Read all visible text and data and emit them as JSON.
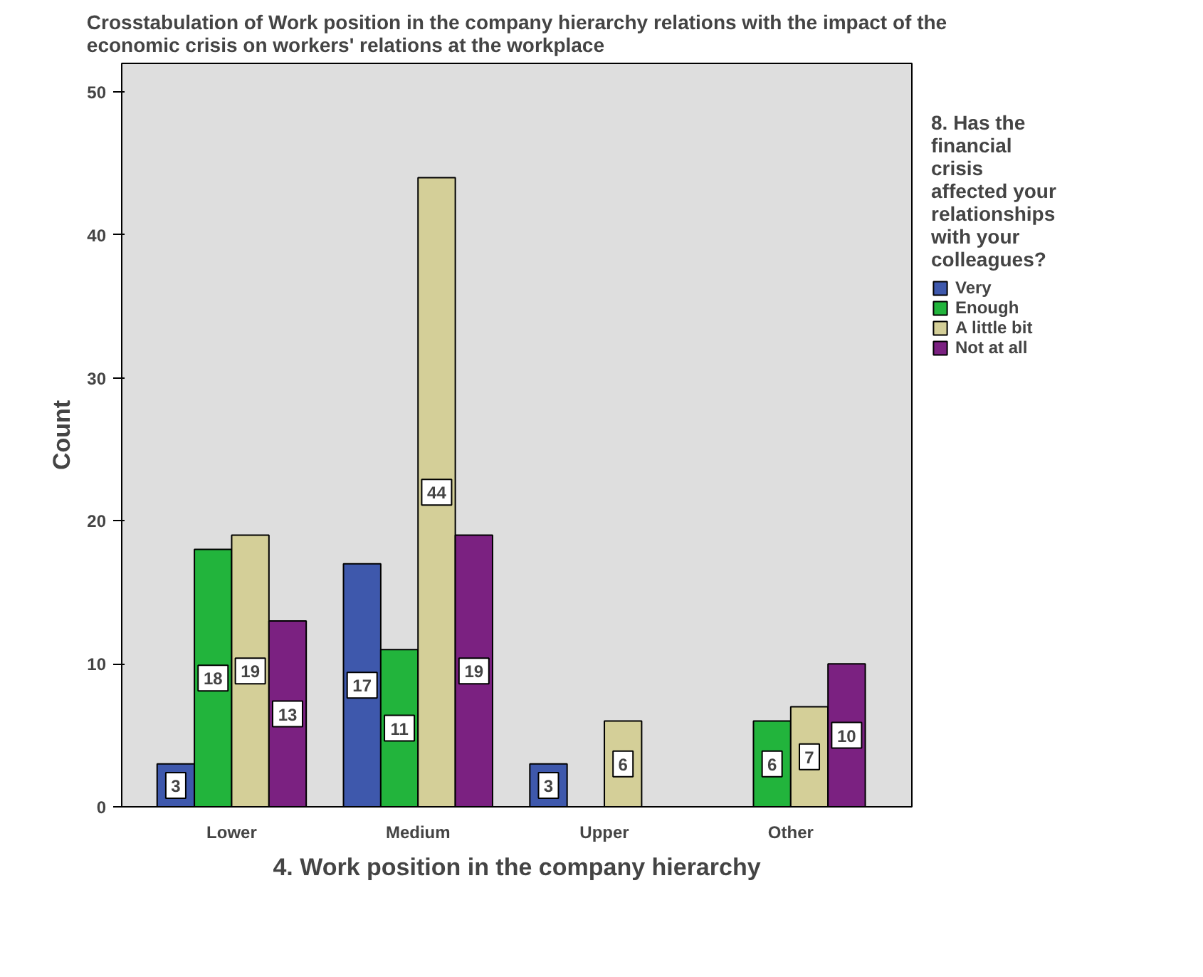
{
  "chart_data": {
    "type": "bar",
    "title": "Crosstabulation of Work position in the company hierarchy relations with the impact of the economic crisis on workers' relations at the workplace",
    "xlabel": "4. Work position in the company hierarchy",
    "ylabel": "Count",
    "legend_title": "8. Has the financial crisis affected your relationships with your colleagues?",
    "categories": [
      "Lower",
      "Medium",
      "Upper",
      "Other"
    ],
    "series": [
      {
        "name": "Very",
        "color": "#3e58ac",
        "values": [
          3,
          17,
          3,
          null
        ]
      },
      {
        "name": "Enough",
        "color": "#22b43c",
        "values": [
          18,
          11,
          null,
          6
        ]
      },
      {
        "name": "A little bit",
        "color": "#d4cf98",
        "values": [
          19,
          44,
          6,
          7
        ]
      },
      {
        "name": "Not at all",
        "color": "#7b2181",
        "values": [
          13,
          19,
          null,
          10
        ]
      }
    ],
    "ylim": [
      0,
      52
    ],
    "yticks": [
      0,
      10,
      20,
      30,
      40,
      50
    ],
    "data_labels": true,
    "legend": "top right",
    "grid": false
  }
}
